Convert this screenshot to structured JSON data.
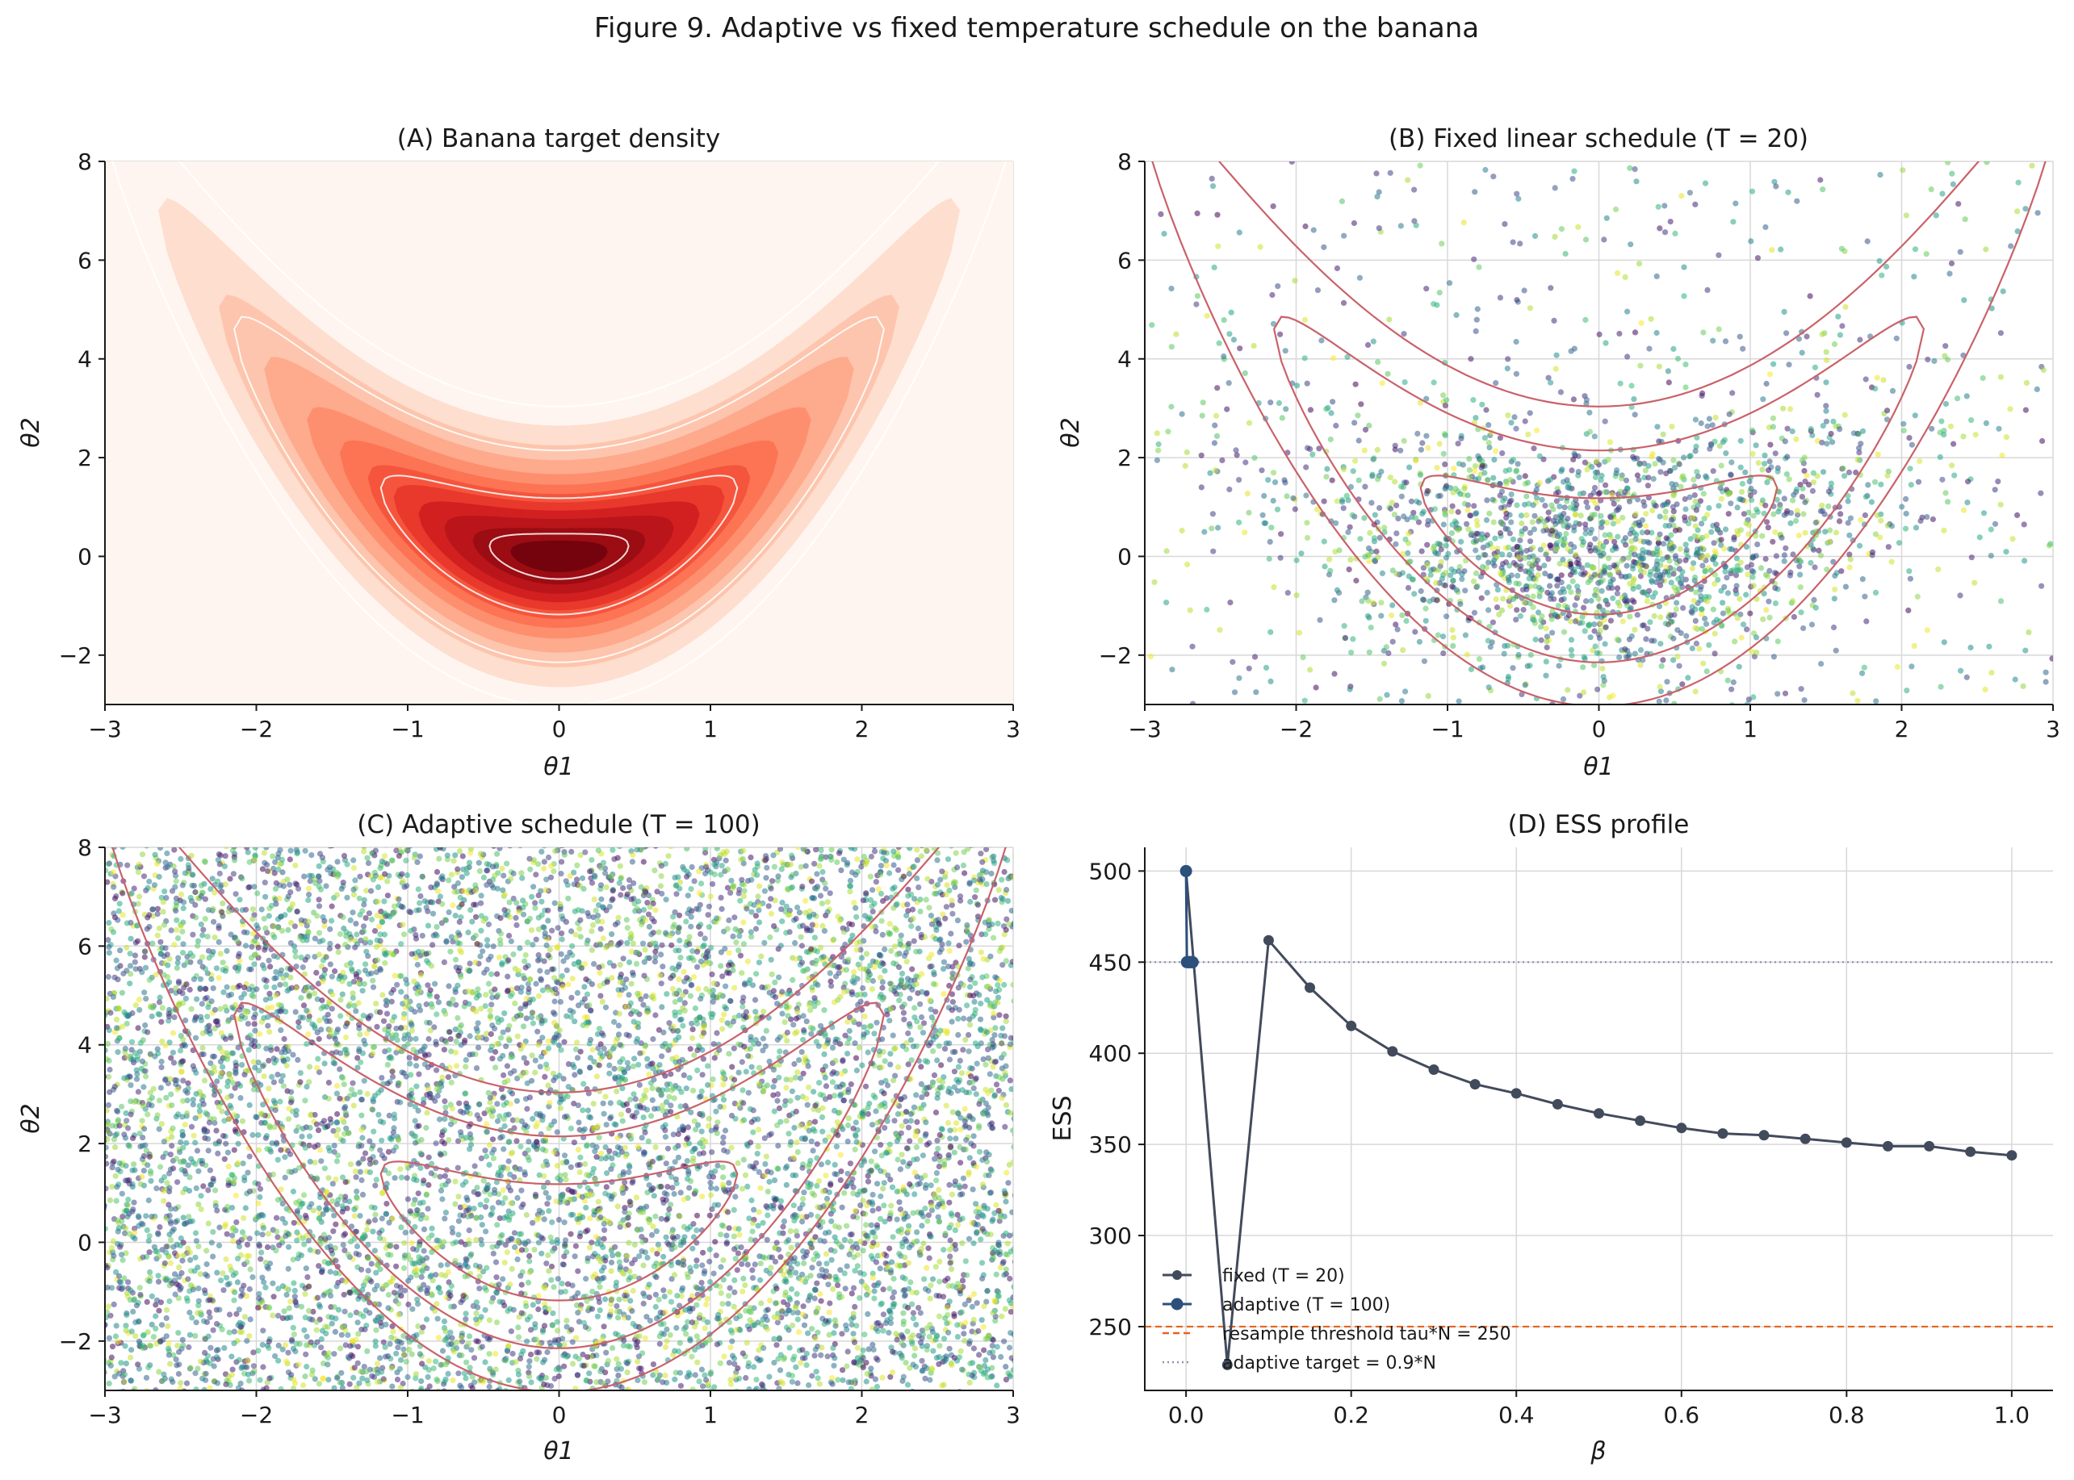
{
  "figure_title": "Figure 9. Adaptive vs fixed temperature schedule on the banana",
  "chart_data": [
    {
      "panel": "A",
      "type": "heatmap",
      "title": "(A) Banana target density",
      "xlabel": "θ1",
      "ylabel": "θ2",
      "xlim": [
        -3,
        3
      ],
      "ylim": [
        -3,
        8
      ],
      "xticks": [
        -3,
        -2,
        -1,
        0,
        1,
        2,
        3
      ],
      "yticks": [
        -2,
        0,
        2,
        4,
        6,
        8
      ],
      "xtick_labels": [
        "−3",
        "−2",
        "−1",
        "0",
        "1",
        "2",
        "3"
      ],
      "ytick_labels": [
        "−2",
        "0",
        "2",
        "4",
        "6",
        "8"
      ],
      "grid": true,
      "colormap": "Reds",
      "density_levels": [
        0.03,
        0.08,
        0.15,
        0.25,
        0.35,
        0.45,
        0.55,
        0.65,
        0.75,
        0.85,
        0.95
      ],
      "contour_color": "#ffffff",
      "contour_levels": [
        0.01,
        0.1,
        0.5,
        0.9
      ]
    },
    {
      "panel": "B",
      "type": "scatter",
      "title": "(B) Fixed linear schedule (T = 20)",
      "xlabel": "θ1",
      "ylabel": "θ2",
      "xlim": [
        -3,
        3
      ],
      "ylim": [
        -3,
        8
      ],
      "xticks": [
        -3,
        -2,
        -1,
        0,
        1,
        2,
        3
      ],
      "yticks": [
        -2,
        0,
        2,
        4,
        6,
        8
      ],
      "xtick_labels": [
        "−3",
        "−2",
        "−1",
        "0",
        "1",
        "2",
        "3"
      ],
      "ytick_labels": [
        "−2",
        "0",
        "2",
        "4",
        "6",
        "8"
      ],
      "grid": true,
      "colormap": "viridis",
      "n_points": 2400,
      "contour_color": "#c9626a",
      "contour_levels": [
        0.01,
        0.1,
        0.5
      ]
    },
    {
      "panel": "C",
      "type": "scatter",
      "title": "(C) Adaptive schedule (T = 100)",
      "xlabel": "θ1",
      "ylabel": "θ2",
      "xlim": [
        -3,
        3
      ],
      "ylim": [
        -3,
        8
      ],
      "xticks": [
        -3,
        -2,
        -1,
        0,
        1,
        2,
        3
      ],
      "yticks": [
        -2,
        0,
        2,
        4,
        6,
        8
      ],
      "xtick_labels": [
        "−3",
        "−2",
        "−1",
        "0",
        "1",
        "2",
        "3"
      ],
      "ytick_labels": [
        "−2",
        "0",
        "2",
        "4",
        "6",
        "8"
      ],
      "grid": true,
      "colormap": "viridis",
      "n_points": 9000,
      "contour_color": "#c9626a",
      "contour_levels": [
        0.01,
        0.1,
        0.5
      ]
    },
    {
      "panel": "D",
      "type": "line",
      "title": "(D) ESS profile",
      "xlabel": "β",
      "ylabel": "ESS",
      "xlim": [
        -0.05,
        1.05
      ],
      "ylim": [
        215,
        513
      ],
      "xticks": [
        0.0,
        0.2,
        0.4,
        0.6,
        0.8,
        1.0
      ],
      "yticks": [
        250,
        300,
        350,
        400,
        450,
        500
      ],
      "xtick_labels": [
        "0.0",
        "0.2",
        "0.4",
        "0.6",
        "0.8",
        "1.0"
      ],
      "ytick_labels": [
        "250",
        "300",
        "350",
        "400",
        "450",
        "500"
      ],
      "grid": true,
      "legend": "lower-left",
      "series": [
        {
          "name": "fixed (T = 20)",
          "color": "#424b5c",
          "x": [
            0.0,
            0.05,
            0.1,
            0.15,
            0.2,
            0.25,
            0.3,
            0.35,
            0.4,
            0.45,
            0.5,
            0.55,
            0.6,
            0.65,
            0.7,
            0.75,
            0.8,
            0.85,
            0.9,
            0.95,
            1.0
          ],
          "y": [
            500,
            229,
            462,
            436,
            415,
            401,
            391,
            383,
            378,
            372,
            367,
            363,
            359,
            356,
            355,
            353,
            351,
            349,
            349,
            346,
            344
          ]
        },
        {
          "name": "adaptive (T = 100)",
          "color": "#2c4f7c",
          "x": [
            0.0,
            0.001,
            0.002,
            0.003,
            0.004,
            0.005,
            0.006,
            0.007,
            0.008
          ],
          "y": [
            500,
            450,
            450,
            450,
            450,
            450,
            450,
            450,
            450
          ]
        }
      ],
      "hlines": [
        {
          "name": "resample threshold tau*N = 250",
          "y": 250,
          "color": "#e8631c",
          "style": "dashed"
        },
        {
          "name": "adaptive target = 0.9*N",
          "y": 450,
          "color": "#8d93b3",
          "style": "dotted"
        }
      ]
    }
  ]
}
